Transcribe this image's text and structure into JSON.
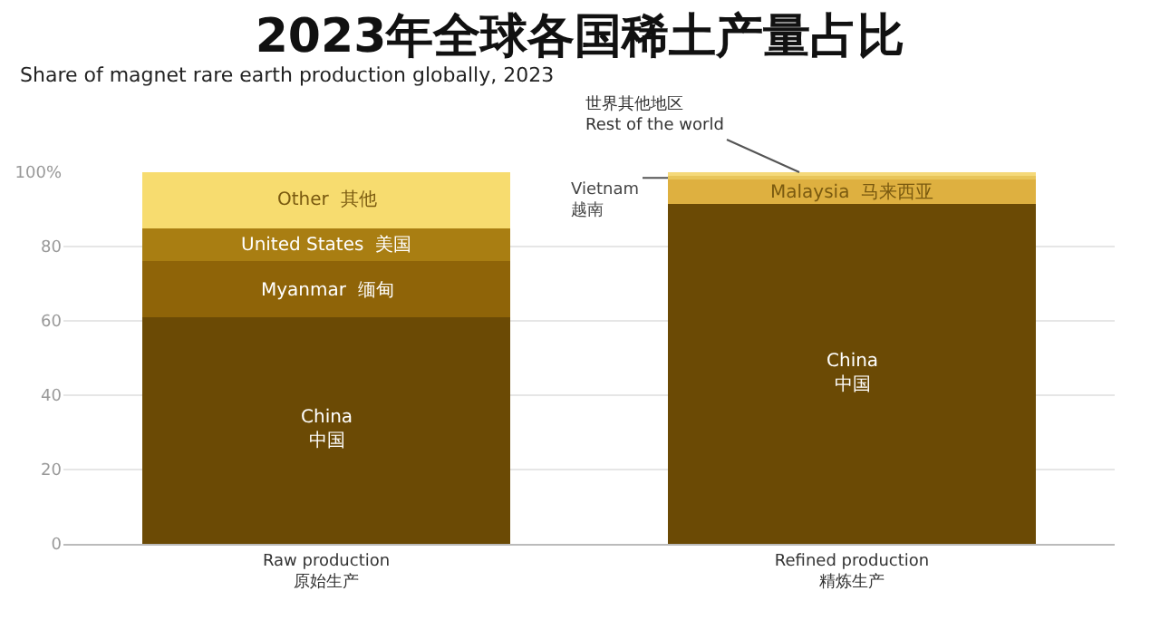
{
  "chart_data": {
    "type": "bar",
    "stacked": true,
    "title": "2023年全球各国稀土产量占比",
    "subtitle": "Share of magnet rare earth production globally, 2023",
    "categories": [
      "Raw production\n原始生产",
      "Refined production\n精炼生产"
    ],
    "series": [
      {
        "name": "China\n中国",
        "color": "#6b4a05",
        "values": [
          61,
          91.5
        ]
      },
      {
        "name": "Myanmar  缅甸",
        "color": "#8f6408",
        "values": [
          15,
          null
        ]
      },
      {
        "name": "Malaysia  马来西亚",
        "color": "#deb040",
        "values": [
          null,
          6.5
        ]
      },
      {
        "name": "United States  美国",
        "color": "#a97e12",
        "values": [
          9,
          null
        ]
      },
      {
        "name": "Vietnam\n越南",
        "color": "#e8c55a",
        "values": [
          null,
          1
        ]
      },
      {
        "name": "Other  其他",
        "color": "#f7dc6f",
        "values": [
          15,
          null
        ]
      },
      {
        "name": "世界其他地区\nRest of the world",
        "color": "#f5d97a",
        "values": [
          null,
          1
        ]
      }
    ],
    "ylim": [
      0,
      100
    ],
    "yticks": [
      0,
      20,
      40,
      60,
      80,
      {
        "value": 100,
        "label": "100%"
      }
    ],
    "grid": "y",
    "legend": false
  }
}
